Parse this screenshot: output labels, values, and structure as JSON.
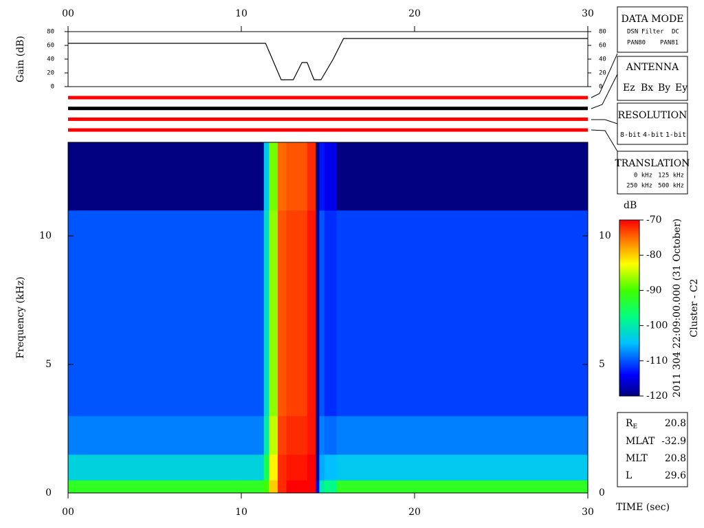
{
  "chart_data": [
    {
      "type": "line",
      "y_label": "Gain (dB)",
      "x": [
        0,
        11.4,
        12.3,
        13.0,
        13.5,
        13.8,
        14.2,
        14.6,
        15.3,
        15.9,
        30
      ],
      "values": [
        63,
        63,
        10,
        10,
        35,
        35,
        10,
        10,
        40,
        70,
        70
      ],
      "color": "#000000",
      "xlim": [
        0,
        30
      ],
      "xticks": [
        {
          "value": 0,
          "label": "00"
        },
        10,
        20,
        30
      ],
      "ylim": [
        0,
        80
      ],
      "yticks": [
        0,
        20,
        40,
        60,
        80
      ]
    },
    {
      "type": "heatmap",
      "y_label": "Frequency (kHz)",
      "x_label": "TIME (sec)",
      "x_bins": [
        0,
        11.3,
        11.6,
        12.1,
        12.6,
        13.8,
        14.3,
        14.5,
        14.8,
        15.5,
        30
      ],
      "y_bins": [
        0,
        0.5,
        1.5,
        3,
        11,
        13.64
      ],
      "values": [
        [
          -92,
          -90,
          -80,
          -72,
          -70,
          -70,
          -115,
          -100,
          -98,
          -92
        ],
        [
          -103,
          -95,
          -82,
          -72,
          -71,
          -70,
          -118,
          -106,
          -105,
          -104
        ],
        [
          -108,
          -100,
          -85,
          -73,
          -72,
          -71,
          -119,
          -108,
          -109,
          -108
        ],
        [
          -110,
          -102,
          -87,
          -74,
          -73,
          -71,
          -119,
          -110,
          -112,
          -111
        ],
        [
          -120,
          -104,
          -88,
          -75,
          -74,
          -72,
          -120,
          -113,
          -115,
          -120
        ]
      ],
      "xlim": [
        0,
        30
      ],
      "xticks": [
        {
          "value": 0,
          "label": "00"
        },
        10,
        20,
        30
      ],
      "ylim": [
        0,
        13.64
      ],
      "yticks": [
        0,
        5,
        10
      ],
      "colorbar": {
        "title": "dB",
        "lim": [
          -120,
          -70
        ],
        "ticks": [
          -70,
          -80,
          -90,
          -100,
          -110,
          -120
        ]
      }
    }
  ],
  "antenna_bars": [
    "#ff0000",
    "#000000",
    "#ff0000",
    "#ff0000"
  ],
  "data_mode": {
    "title": "DATA MODE",
    "items": [
      {
        "text": "DSN",
        "color": "#ff0000"
      },
      {
        "text": "Filter",
        "color": "#00cc00"
      },
      {
        "text": "DC",
        "color": "#0000ff"
      },
      {
        "text": "PAN80",
        "color": "#000000"
      },
      {
        "text": "PAN81",
        "color": "#00cccc"
      }
    ]
  },
  "antenna": {
    "title": "ANTENNA",
    "items": [
      {
        "text": "Ez",
        "color": "#ff0000"
      },
      {
        "text": "Bx",
        "color": "#00cc00"
      },
      {
        "text": "By",
        "color": "#0000ff"
      },
      {
        "text": "Ey",
        "color": "#000000"
      }
    ]
  },
  "resolution": {
    "title": "RESOLUTION",
    "items": [
      {
        "text": "8-bit",
        "color": "#ff0000"
      },
      {
        "text": "4-bit",
        "color": "#00cc00"
      },
      {
        "text": "1-bit",
        "color": "#0000ff"
      }
    ]
  },
  "translation": {
    "title": "TRANSLATION",
    "items": [
      {
        "text": "0 kHz",
        "color": "#ff0000"
      },
      {
        "text": "125 kHz",
        "color": "#00cc00"
      },
      {
        "text": "250 kHz",
        "color": "#0000ff"
      },
      {
        "text": "500 kHz",
        "color": "#000000"
      }
    ]
  },
  "timestamp": "2011 304 22:09:00.000 (31 October)",
  "spacecraft": "Cluster - C2",
  "orbit": [
    {
      "label": "R",
      "sub": "E",
      "value": 20.8
    },
    {
      "label": "MLAT",
      "value": -32.9
    },
    {
      "label": "MLT",
      "value": 20.8
    },
    {
      "label": "L",
      "value": 29.6
    }
  ]
}
